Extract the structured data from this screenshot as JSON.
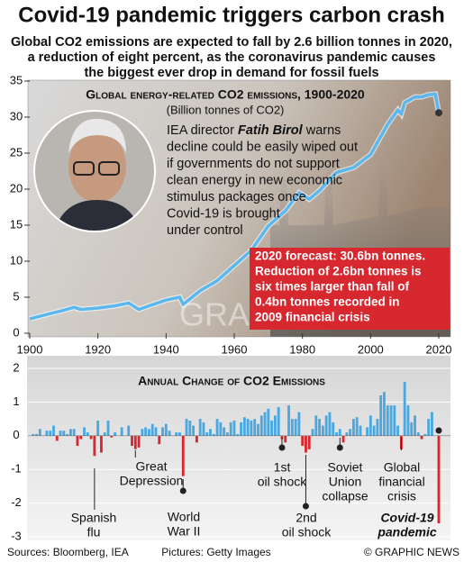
{
  "header": {
    "title": "Covid-19 pandemic triggers carbon crash",
    "subtitle": [
      "Global CO2 emissions are expected to fall by 2.6 billion tonnes in 2020,",
      "a reduction of eight percent, as the coronavirus pandemic causes",
      "the biggest ever drop in demand for fossil fuels"
    ]
  },
  "chart_data": [
    {
      "type": "line",
      "title": "Global energy-related CO2 emissions, 1900-2020",
      "subtitle": "(Billion tonnes of CO2)",
      "x": [
        1900,
        1905,
        1910,
        1913,
        1915,
        1920,
        1925,
        1929,
        1932,
        1935,
        1940,
        1944,
        1945,
        1950,
        1955,
        1960,
        1965,
        1970,
        1975,
        1979,
        1982,
        1985,
        1990,
        1995,
        2000,
        2005,
        2008,
        2009,
        2010,
        2013,
        2015,
        2017,
        2019,
        2020
      ],
      "values": [
        2.0,
        2.6,
        3.2,
        3.6,
        3.3,
        3.5,
        3.8,
        4.2,
        3.3,
        3.8,
        4.6,
        5.0,
        4.0,
        5.9,
        7.3,
        9.4,
        11.5,
        14.9,
        17.0,
        19.5,
        18.6,
        19.8,
        22.3,
        23.0,
        24.8,
        29.0,
        31.0,
        30.4,
        32.0,
        32.8,
        32.8,
        33.1,
        33.2,
        30.6
      ],
      "color": "#5ab8ee",
      "xlim": [
        1900,
        2020
      ],
      "xticks": [
        1900,
        1920,
        1940,
        1960,
        1980,
        2000,
        2020
      ],
      "ylim": [
        0,
        35
      ],
      "yticks": [
        0,
        5,
        10,
        15,
        20,
        25,
        30,
        35
      ],
      "quote": [
        [
          "IEA director ",
          "Fatih Birol",
          " warns"
        ],
        [
          "decline could be easily wiped out"
        ],
        [
          "if governments do not support"
        ],
        [
          "clean energy in new economic"
        ],
        [
          "stimulus packages once"
        ],
        [
          "Covid-19 is brought"
        ],
        [
          "under control"
        ]
      ],
      "callout": [
        "2020 forecast: 30.6bn tonnes.",
        "Reduction of 2.6bn tonnes is",
        "six times larger than fall of",
        "0.4bn tonnes recorded in",
        "2009 financial crisis"
      ],
      "callout_color": "#d7282f",
      "watermark": "GRAPHIC NEWS"
    },
    {
      "type": "bar",
      "title": "Annual Change of CO2 Emissions",
      "x": [
        1901,
        1902,
        1903,
        1904,
        1905,
        1906,
        1907,
        1908,
        1909,
        1910,
        1911,
        1912,
        1913,
        1914,
        1915,
        1916,
        1917,
        1918,
        1919,
        1920,
        1921,
        1922,
        1923,
        1924,
        1925,
        1926,
        1927,
        1928,
        1929,
        1930,
        1931,
        1932,
        1933,
        1934,
        1935,
        1936,
        1937,
        1938,
        1939,
        1940,
        1941,
        1942,
        1943,
        1944,
        1945,
        1946,
        1947,
        1948,
        1949,
        1950,
        1951,
        1952,
        1953,
        1954,
        1955,
        1956,
        1957,
        1958,
        1959,
        1960,
        1961,
        1962,
        1963,
        1964,
        1965,
        1966,
        1967,
        1968,
        1969,
        1970,
        1971,
        1972,
        1973,
        1974,
        1975,
        1976,
        1977,
        1978,
        1979,
        1980,
        1981,
        1982,
        1983,
        1984,
        1985,
        1986,
        1987,
        1988,
        1989,
        1990,
        1991,
        1992,
        1993,
        1994,
        1995,
        1996,
        1997,
        1998,
        1999,
        2000,
        2001,
        2002,
        2003,
        2004,
        2005,
        2006,
        2007,
        2008,
        2009,
        2010,
        2011,
        2012,
        2013,
        2014,
        2015,
        2016,
        2017,
        2018,
        2019,
        2020
      ],
      "values": [
        0.05,
        0.05,
        0.2,
        0,
        0.15,
        0.15,
        0.3,
        -0.15,
        0.15,
        0.15,
        0.05,
        0.2,
        0.2,
        -0.3,
        -0.1,
        0.25,
        0.1,
        -0.1,
        -0.6,
        0.45,
        -0.5,
        0.1,
        0.45,
        -0.05,
        0.1,
        0,
        0.25,
        0,
        0.3,
        -0.3,
        -0.4,
        -0.35,
        0.2,
        0.25,
        0.2,
        0.35,
        0.25,
        -0.25,
        0.25,
        0.35,
        0.15,
        0,
        0.1,
        0.1,
        -1.2,
        0.5,
        0.45,
        0.3,
        -0.2,
        0.5,
        0.4,
        0.1,
        0.2,
        0.05,
        0.5,
        0.4,
        0.25,
        0.1,
        0.4,
        0.45,
        0.05,
        0.4,
        0.55,
        0.5,
        0.45,
        0.5,
        0.35,
        0.6,
        0.7,
        0.8,
        0.45,
        0.6,
        0.85,
        -0.1,
        -0.2,
        0.9,
        0.5,
        0.5,
        0.7,
        -0.3,
        -0.5,
        -0.4,
        0.2,
        0.6,
        0.5,
        0.3,
        0.6,
        0.7,
        0.4,
        0.1,
        0.2,
        -0.2,
        0.1,
        0.2,
        0.5,
        0.55,
        0.3,
        0,
        0.25,
        0.6,
        0.3,
        0.5,
        1.2,
        1.3,
        0.9,
        0.9,
        0.9,
        0.3,
        -0.4,
        1.6,
        0.9,
        0.4,
        0.6,
        0.1,
        -0.1,
        0.05,
        0.5,
        0.7,
        0,
        -2.6
      ],
      "positive_color": "#4aa8e0",
      "negative_color": "#d7282f",
      "xlim": [
        1900,
        2020
      ],
      "ylim": [
        -3,
        2
      ],
      "yticks": [
        -3,
        -2,
        -1,
        0,
        1,
        2
      ],
      "grid": true,
      "annotations": [
        {
          "year": 1919,
          "text": [
            "Spanish",
            "flu"
          ]
        },
        {
          "year": 1931,
          "text": [
            "Great",
            "Depression"
          ]
        },
        {
          "year": 1945,
          "text": [
            "World",
            "War II"
          ]
        },
        {
          "year": 1974,
          "text": [
            "1st",
            "oil shock"
          ]
        },
        {
          "year": 1981,
          "text": [
            "2nd",
            "oil shock"
          ]
        },
        {
          "year": 1991,
          "text": [
            "Soviet",
            "Union",
            "collapse"
          ]
        },
        {
          "year": 2009,
          "text": [
            "Global",
            "financial",
            "crisis"
          ]
        },
        {
          "year": 2020,
          "text": [
            "Covid-19",
            "pandemic"
          ]
        }
      ]
    }
  ],
  "footer": {
    "sources": "Sources: Bloomberg, IEA",
    "pictures": "Pictures: Getty Images",
    "credit": "© GRAPHIC NEWS"
  }
}
